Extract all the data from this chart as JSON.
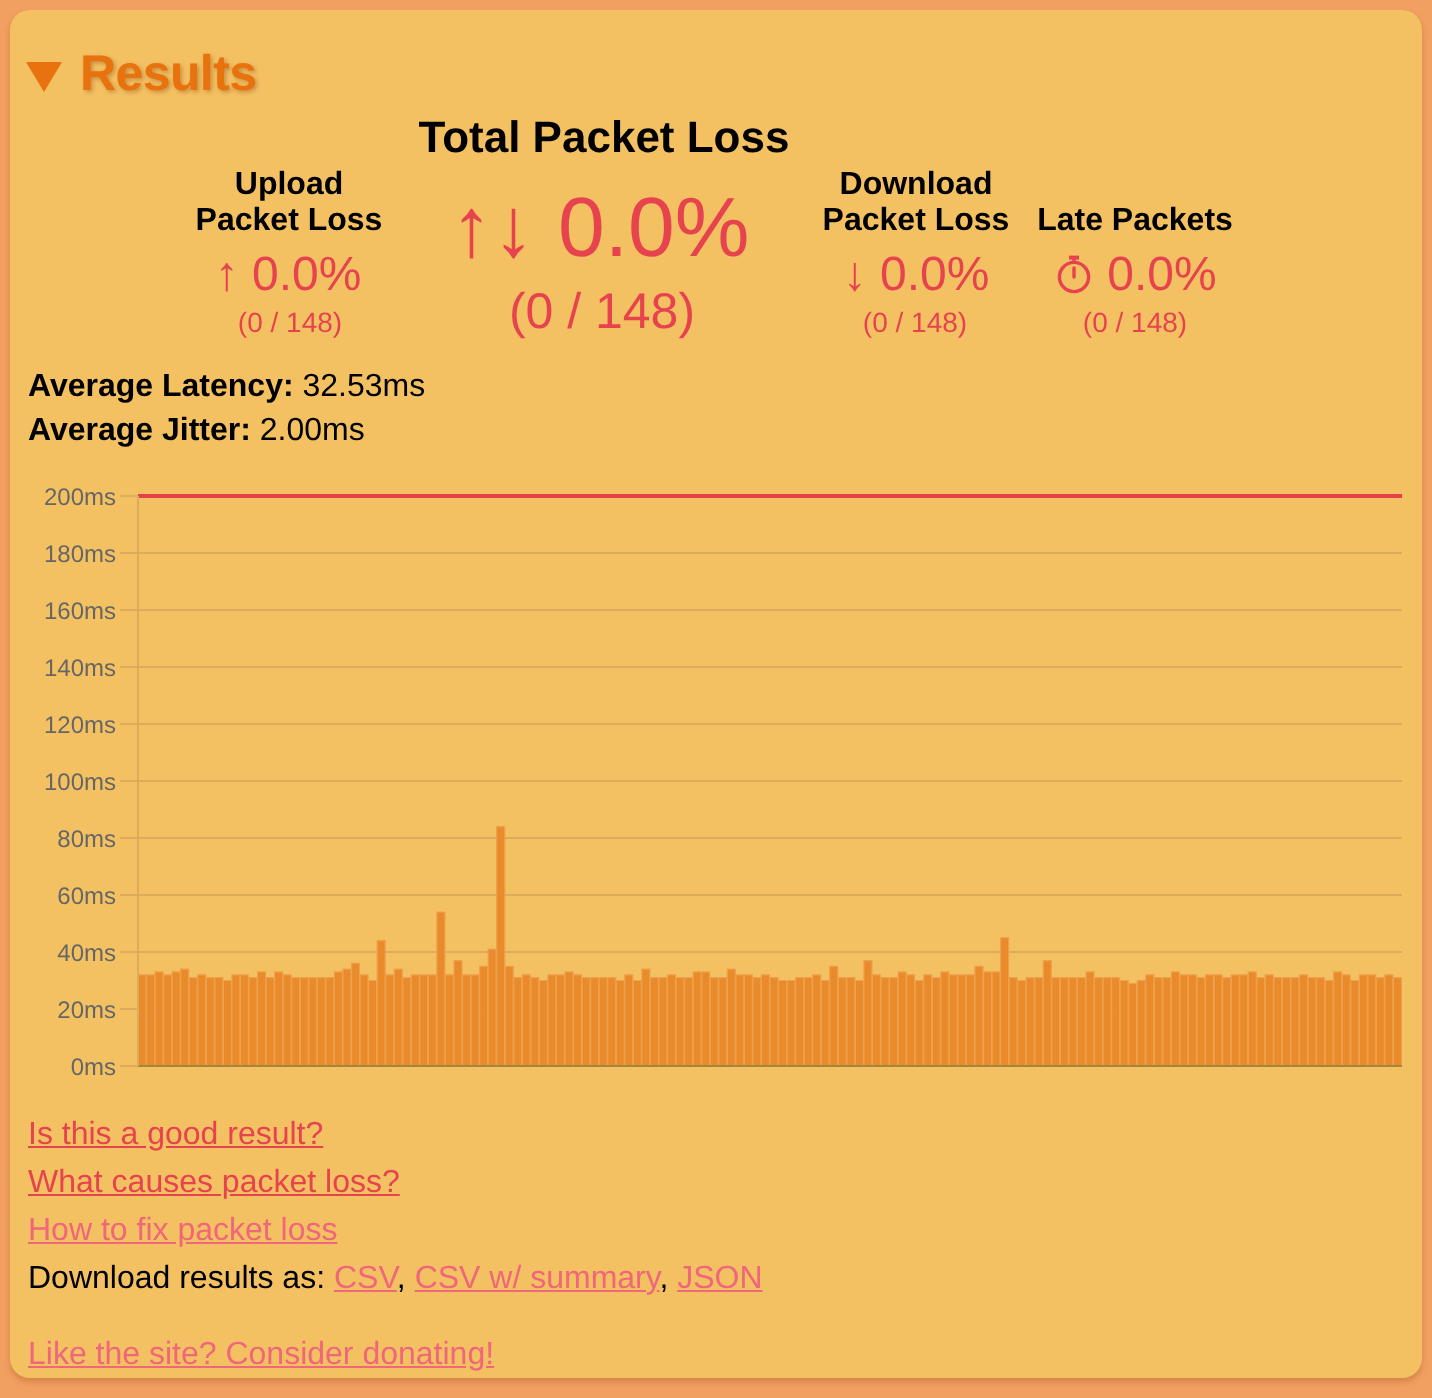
{
  "chart_data": {
    "type": "bar",
    "title": "Results",
    "annotations": [
      "Total Packet Loss",
      "Upload Packet Loss",
      "↑ 0.0%",
      "(0 / 148)",
      "↑↓ 0.0%",
      "(0 / 148)",
      "Download Packet Loss",
      "↓ 0.0%",
      "(0 / 148)",
      "Late Packets",
      "0.0%",
      "(0 / 148)",
      "Average Latency: 32.53ms",
      "Average Jitter: 2.00ms",
      "Is this a good result?",
      "What causes packet loss?",
      "How to fix packet loss",
      "Download results as: CSV, CSV w/ summary, JSON",
      "Like the site? Consider donating!"
    ],
    "categories": [
      null,
      null,
      null,
      null,
      null,
      null,
      null,
      null,
      null,
      null,
      null,
      null,
      null,
      null,
      null,
      null,
      null,
      null,
      null,
      null,
      null,
      null,
      null,
      null,
      null,
      null,
      null,
      null,
      null,
      null,
      null,
      null,
      null,
      null,
      null,
      null,
      null,
      null,
      null,
      null,
      null,
      null,
      null,
      null,
      null,
      null,
      null,
      null,
      null,
      null,
      null,
      null,
      null,
      null,
      null,
      null,
      null,
      null,
      null,
      null,
      null,
      null,
      null,
      null,
      null,
      null,
      null,
      null,
      null,
      null,
      null,
      null,
      null,
      null,
      null,
      null,
      null,
      null,
      null,
      null,
      null,
      null,
      null,
      null,
      null,
      null,
      null,
      null,
      null,
      null,
      null,
      null,
      null,
      null,
      null,
      null,
      null,
      null,
      null,
      null,
      null,
      null,
      null,
      null,
      null,
      null,
      null,
      null,
      null,
      null,
      null,
      null,
      null,
      null,
      null,
      null,
      null,
      null,
      null,
      null,
      null,
      null,
      null,
      null,
      null,
      null,
      null,
      null,
      null,
      null,
      null,
      null,
      null,
      null,
      null,
      null,
      null,
      null,
      null,
      null,
      null,
      null,
      null,
      null,
      null,
      null,
      null,
      null
    ],
    "values": [
      32,
      32,
      33,
      32,
      33,
      34,
      31,
      32,
      31,
      31,
      30,
      32,
      32,
      31,
      33,
      31,
      33,
      32,
      31,
      31,
      31,
      31,
      31,
      33,
      34,
      36,
      32,
      30,
      44,
      32,
      34,
      31,
      32,
      32,
      32,
      54,
      32,
      37,
      32,
      32,
      35,
      41,
      84,
      35,
      31,
      32,
      31,
      30,
      32,
      32,
      33,
      32,
      31,
      31,
      31,
      31,
      30,
      32,
      30,
      34,
      31,
      31,
      32,
      31,
      31,
      33,
      33,
      31,
      31,
      34,
      32,
      32,
      31,
      32,
      31,
      30,
      30,
      31,
      31,
      32,
      30,
      35,
      31,
      31,
      30,
      37,
      32,
      31,
      31,
      33,
      32,
      30,
      32,
      31,
      33,
      32,
      32,
      32,
      35,
      33,
      33,
      45,
      31,
      30,
      31,
      31,
      37,
      31,
      31,
      31,
      31,
      33,
      31,
      31,
      31,
      30,
      29,
      30,
      32,
      31,
      31,
      33,
      32,
      32,
      31,
      32,
      32,
      31,
      32,
      32,
      33,
      31,
      32,
      31,
      31,
      31,
      32,
      31,
      31,
      30,
      33,
      32,
      30,
      32,
      32,
      31,
      32,
      31
    ],
    "color": "#e98a2b",
    "ylim": [
      0,
      200
    ],
    "yticks": [
      {
        "value": 0,
        "label": "0ms"
      },
      {
        "value": 20,
        "label": "20ms"
      },
      {
        "value": 40,
        "label": "40ms"
      },
      {
        "value": 60,
        "label": "60ms"
      },
      {
        "value": 80,
        "label": "80ms"
      },
      {
        "value": 100,
        "label": "100ms"
      },
      {
        "value": 120,
        "label": "120ms"
      },
      {
        "value": 140,
        "label": "140ms"
      },
      {
        "value": 160,
        "label": "160ms"
      },
      {
        "value": 180,
        "label": "180ms"
      },
      {
        "value": 200,
        "label": "200ms"
      }
    ],
    "grid": "y",
    "tick_labels": "y",
    "ref_lines": [
      {
        "axis": "y",
        "value": 200,
        "color": "#e8404a"
      }
    ]
  }
}
